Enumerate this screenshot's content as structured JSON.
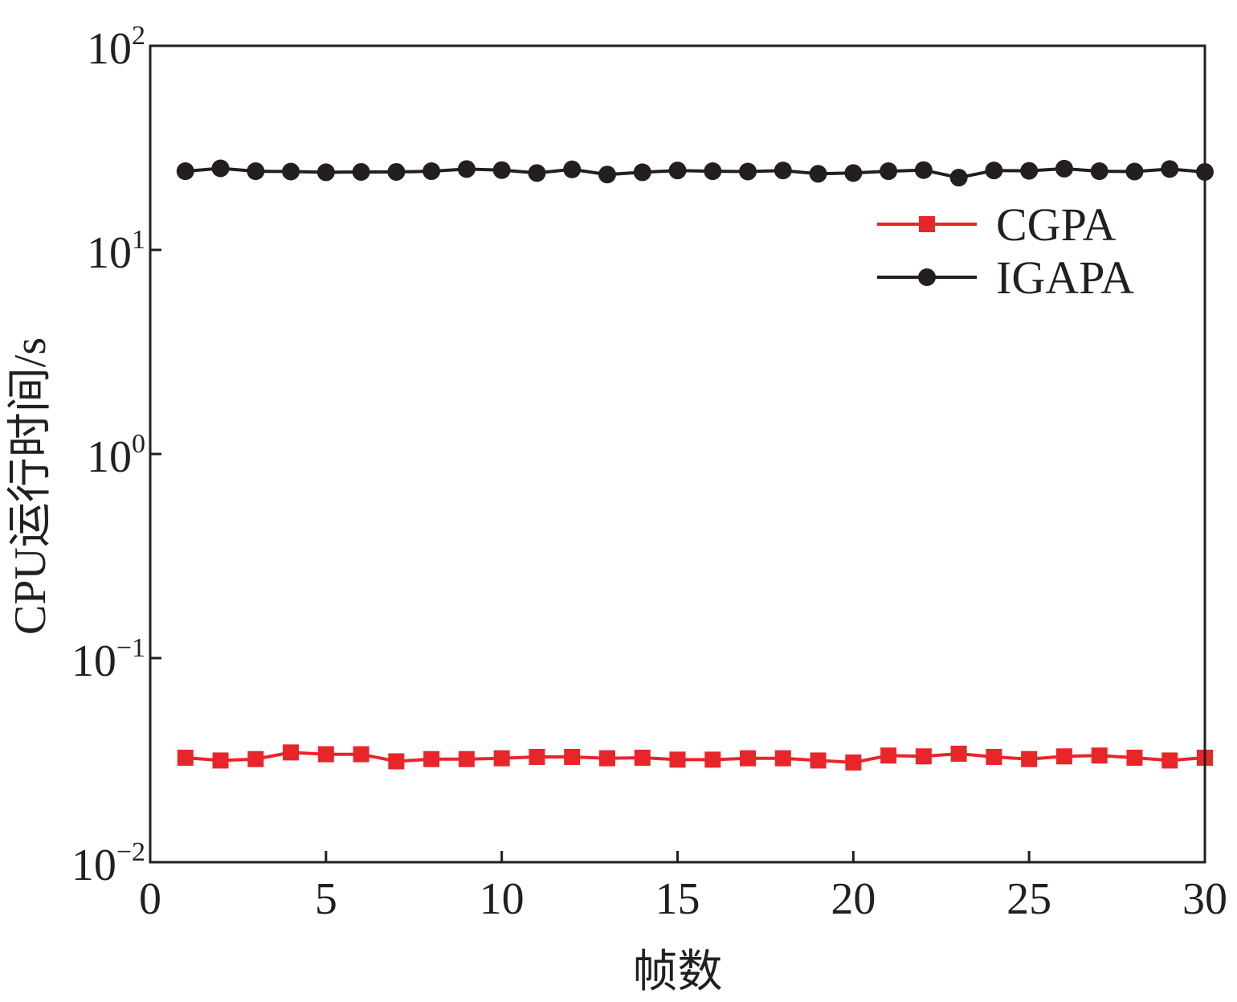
{
  "chart_data": {
    "type": "line",
    "xlabel": "帧数",
    "ylabel": "CPU运行时间/s",
    "x_ticks": [
      0,
      5,
      10,
      15,
      20,
      25,
      30
    ],
    "xlim": [
      0,
      30
    ],
    "y_scale": "log",
    "ylim": [
      0.01,
      100
    ],
    "y_ticks": [
      {
        "base": "10",
        "exp": "−2",
        "value": 0.01
      },
      {
        "base": "10",
        "exp": "−1",
        "value": 0.1
      },
      {
        "base": "10",
        "exp": "0",
        "value": 1
      },
      {
        "base": "10",
        "exp": "1",
        "value": 10
      },
      {
        "base": "10",
        "exp": "2",
        "value": 100
      }
    ],
    "legend_position": "upper-right",
    "x": [
      1,
      2,
      3,
      4,
      5,
      6,
      7,
      8,
      9,
      10,
      11,
      12,
      13,
      14,
      15,
      16,
      17,
      18,
      19,
      20,
      21,
      22,
      23,
      24,
      25,
      26,
      27,
      28,
      29,
      30
    ],
    "series": [
      {
        "name": "CGPA",
        "color": "#e8262a",
        "marker": "square",
        "values": [
          0.0325,
          0.0315,
          0.032,
          0.0345,
          0.0338,
          0.0338,
          0.0312,
          0.032,
          0.032,
          0.0323,
          0.0328,
          0.0328,
          0.0323,
          0.0325,
          0.0318,
          0.0318,
          0.0323,
          0.0323,
          0.0315,
          0.0308,
          0.0333,
          0.033,
          0.034,
          0.0328,
          0.032,
          0.033,
          0.0333,
          0.0325,
          0.0315,
          0.0325
        ]
      },
      {
        "name": "IGAPA",
        "color": "#231f20",
        "marker": "circle",
        "values": [
          24.3,
          25.1,
          24.3,
          24.2,
          24.0,
          24.1,
          24.1,
          24.3,
          24.9,
          24.6,
          23.8,
          24.8,
          23.4,
          24.0,
          24.5,
          24.3,
          24.2,
          24.5,
          23.6,
          23.8,
          24.3,
          24.6,
          22.6,
          24.5,
          24.4,
          25.0,
          24.3,
          24.2,
          24.9,
          24.1
        ]
      }
    ]
  }
}
